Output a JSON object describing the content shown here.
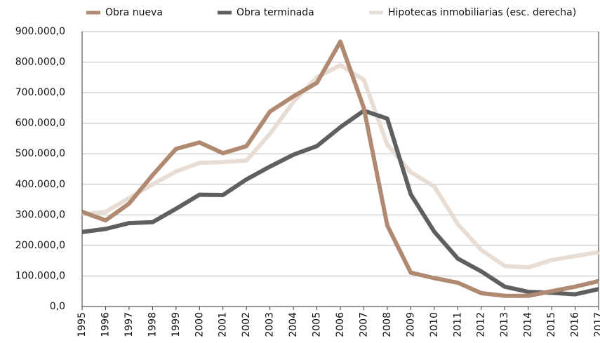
{
  "chart_data": {
    "type": "line",
    "categories": [
      "1995",
      "1996",
      "1997",
      "1998",
      "1999",
      "2000",
      "2001",
      "2002",
      "2003",
      "2004",
      "2005",
      "2006",
      "2007",
      "2008",
      "2009",
      "2010",
      "2011",
      "2012",
      "2013",
      "2014",
      "2015",
      "2016",
      "2017"
    ],
    "series": [
      {
        "name": "Obra nueva",
        "color": "#b08a70",
        "values": [
          310000,
          282000,
          337000,
          430000,
          516000,
          537000,
          502000,
          525000,
          638000,
          688000,
          732000,
          867000,
          650000,
          265000,
          111000,
          93000,
          78000,
          44000,
          35000,
          35000,
          50000,
          65000,
          83000
        ]
      },
      {
        "name": "Obra terminada",
        "color": "#5f5f5f",
        "values": [
          244000,
          254000,
          273000,
          276000,
          320000,
          366000,
          365000,
          416000,
          458000,
          497000,
          525000,
          587000,
          641000,
          615000,
          367000,
          245000,
          157000,
          115000,
          65000,
          48000,
          45000,
          40000,
          57000
        ]
      },
      {
        "name": "Hipotecas inmobiliarias (esc. derecha)",
        "color": "#e8ddd4",
        "values": [
          302000,
          310000,
          355000,
          400000,
          442000,
          470000,
          473000,
          478000,
          565000,
          670000,
          750000,
          790000,
          742000,
          530000,
          440000,
          393000,
          270000,
          185000,
          133000,
          128000,
          152000,
          165000,
          178000
        ]
      }
    ],
    "ylim": [
      0,
      900000
    ],
    "yticks": [
      {
        "value": 0,
        "label": "0,0"
      },
      {
        "value": 100000,
        "label": "100.000,0"
      },
      {
        "value": 200000,
        "label": "200.000,0"
      },
      {
        "value": 300000,
        "label": "300.000,0"
      },
      {
        "value": 400000,
        "label": "400.000,0"
      },
      {
        "value": 500000,
        "label": "500.000,0"
      },
      {
        "value": 600000,
        "label": "600.000,0"
      },
      {
        "value": 700000,
        "label": "700.000,0"
      },
      {
        "value": 800000,
        "label": "800.000,0"
      },
      {
        "value": 900000,
        "label": "900.000,0"
      }
    ],
    "grid": true
  }
}
